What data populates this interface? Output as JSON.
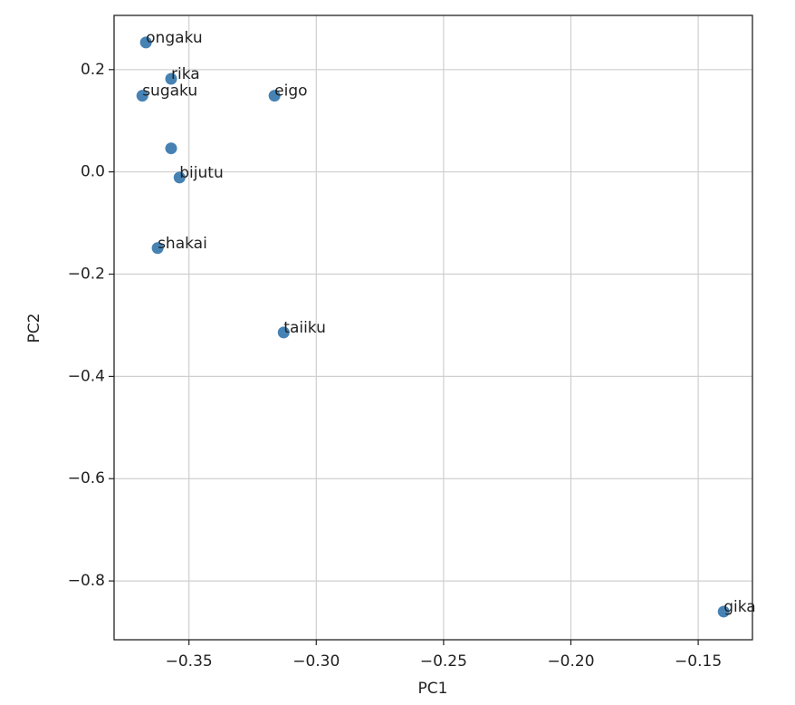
{
  "chart_data": {
    "type": "scatter",
    "xlabel": "PC1",
    "ylabel": "PC2",
    "x": [
      -0.3669,
      -0.357,
      -0.3683,
      -0.3164,
      -0.357,
      -0.3537,
      -0.3623,
      -0.3128,
      -0.14
    ],
    "values": [
      0.253,
      0.182,
      0.149,
      0.149,
      0.046,
      -0.011,
      -0.149,
      -0.314,
      -0.86
    ],
    "labels": [
      "ongaku",
      "rika",
      "sugaku",
      "eigo",
      null,
      "bijutu",
      "shakai",
      "taiiku",
      "gika"
    ],
    "color": "#4682b4",
    "xlim": [
      -0.3794,
      -0.1287
    ],
    "ylim": [
      -0.915,
      0.306
    ],
    "xticks": [
      {
        "value": -0.35,
        "label": "−0.35"
      },
      {
        "value": -0.3,
        "label": "−0.30"
      },
      {
        "value": -0.25,
        "label": "−0.25"
      },
      {
        "value": -0.2,
        "label": "−0.20"
      },
      {
        "value": -0.15,
        "label": "−0.15"
      }
    ],
    "yticks": [
      0.2,
      {
        "value": 0,
        "label": "0.0"
      },
      {
        "value": -0.2,
        "label": "−0.2"
      },
      {
        "value": -0.4,
        "label": "−0.4"
      },
      {
        "value": -0.6,
        "label": "−0.6"
      },
      {
        "value": -0.8,
        "label": "−0.8"
      }
    ],
    "grid": true
  }
}
